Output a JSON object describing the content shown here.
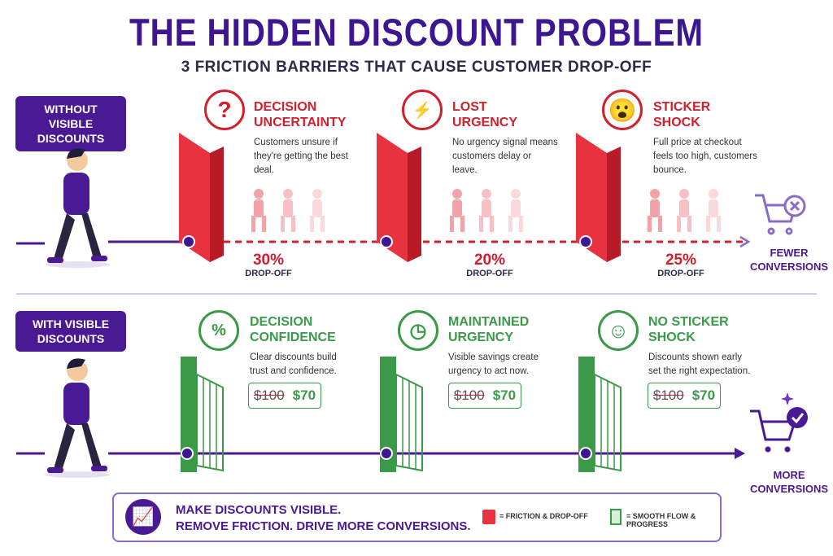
{
  "title": "THE HIDDEN DISCOUNT PROBLEM",
  "subtitle": "3 FRICTION BARRIERS THAT CAUSE CUSTOMER DROP-OFF",
  "without": {
    "label": "WITHOUT VISIBLE DISCOUNTS",
    "barriers": [
      {
        "title": "DECISION UNCERTAINTY",
        "icon": "question-icon",
        "desc": "Customers unsure if they're getting the best deal.",
        "pct": "30%",
        "drop": "DROP-OFF"
      },
      {
        "title": "LOST URGENCY",
        "icon": "broken-clock-icon",
        "desc": "No urgency signal means customers delay or leave.",
        "pct": "20%",
        "drop": "DROP-OFF"
      },
      {
        "title": "STICKER SHOCK",
        "icon": "shocked-face-icon",
        "desc": "Full price at checkout feels too high, customers bounce.",
        "pct": "25%",
        "drop": "DROP-OFF"
      }
    ],
    "outcome": "FEWER CONVERSIONS"
  },
  "with": {
    "label": "WITH VISIBLE DISCOUNTS",
    "gates": [
      {
        "title": "DECISION CONFIDENCE",
        "icon": "discount-tag-icon",
        "desc": "Clear discounts build trust and confidence.",
        "old": "$100",
        "new": "$70"
      },
      {
        "title": "MAINTAINED URGENCY",
        "icon": "clock-icon",
        "desc": "Visible savings create urgency to act now.",
        "old": "$100",
        "new": "$70"
      },
      {
        "title": "NO STICKER SHOCK",
        "icon": "smiley-icon",
        "desc": "Discounts shown early set the right expectation.",
        "old": "$100",
        "new": "$70"
      }
    ],
    "outcome": "MORE CONVERSIONS"
  },
  "banner": {
    "line1": "MAKE DISCOUNTS VISIBLE.",
    "line2": "REMOVE FRICTION. DRIVE MORE CONVERSIONS.",
    "legend_wall": "= FRICTION & DROP-OFF",
    "legend_gate": "= SMOOTH FLOW & PROGRESS"
  },
  "colors": {
    "purple": "#4a1a94",
    "red": "#d0202e",
    "green": "#3a9a47"
  }
}
